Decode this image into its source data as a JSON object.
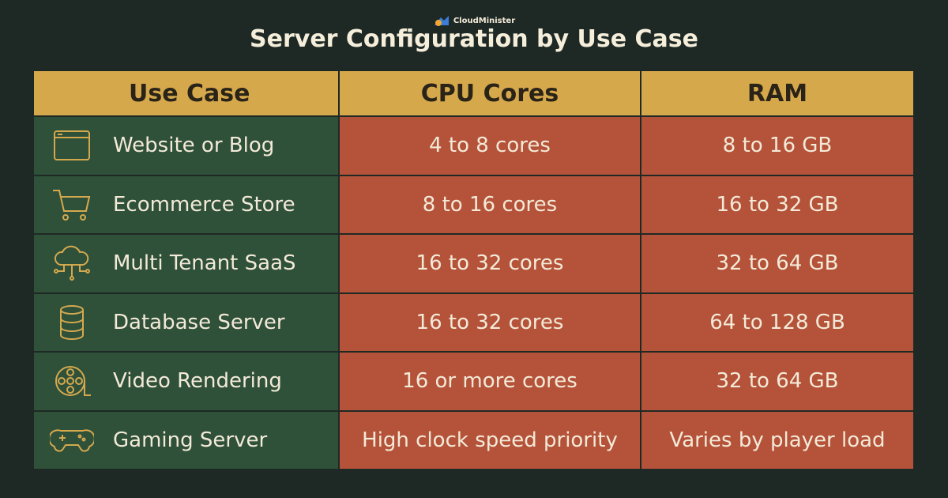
{
  "header": {
    "logo": "CloudMinister",
    "title": "Server Configuration by Use Case"
  },
  "table": {
    "columns": [
      "Use Case",
      "CPU Cores",
      "RAM"
    ],
    "rows": [
      [
        "Website or Blog",
        "4 to 8 cores",
        "8 to 16 GB"
      ],
      [
        "Ecommerce Store",
        "8 to 16 cores",
        "16 to 32 GB"
      ],
      [
        "Multi Tenant SaaS",
        "16 to 32 cores",
        "32 to 64 GB"
      ],
      [
        "Database Server",
        "16 to 32 cores",
        "64 to 128 GB"
      ],
      [
        "Video Rendering",
        "16 or more cores",
        "32 to 64 GB"
      ],
      [
        "Gaming Server",
        "High clock speed priority",
        "Varies by player load"
      ]
    ]
  }
}
